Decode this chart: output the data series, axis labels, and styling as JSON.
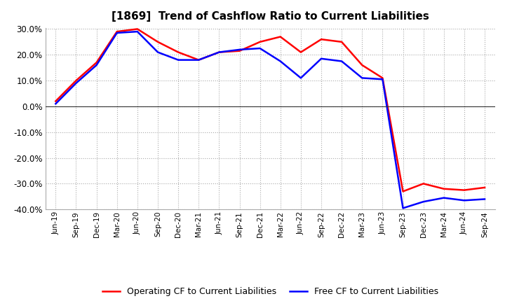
{
  "title": "[1869]  Trend of Cashflow Ratio to Current Liabilities",
  "x_labels": [
    "Jun-19",
    "Sep-19",
    "Dec-19",
    "Mar-20",
    "Jun-20",
    "Sep-20",
    "Dec-20",
    "Mar-21",
    "Jun-21",
    "Sep-21",
    "Dec-21",
    "Mar-22",
    "Jun-22",
    "Sep-22",
    "Dec-22",
    "Mar-23",
    "Jun-23",
    "Sep-23",
    "Dec-23",
    "Mar-24",
    "Jun-24",
    "Sep-24"
  ],
  "operating_cf": [
    2.0,
    10.0,
    17.0,
    29.0,
    30.0,
    25.0,
    21.0,
    18.0,
    21.0,
    21.5,
    25.0,
    27.0,
    21.0,
    26.0,
    25.0,
    16.0,
    11.0,
    -33.0,
    -30.0,
    -32.0,
    -32.5,
    -31.5
  ],
  "free_cf": [
    1.0,
    9.0,
    16.0,
    28.5,
    29.0,
    21.0,
    18.0,
    18.0,
    21.0,
    22.0,
    22.5,
    17.5,
    11.0,
    18.5,
    17.5,
    11.0,
    10.5,
    -39.5,
    -37.0,
    -35.5,
    -36.5,
    -36.0
  ],
  "operating_color": "#ff0000",
  "free_color": "#0000ff",
  "ylim": [
    -40,
    30
  ],
  "yticks": [
    -40,
    -30,
    -20,
    -10,
    0,
    10,
    20,
    30
  ],
  "background_color": "#ffffff",
  "plot_bg_color": "#ffffff",
  "grid_color": "#aaaaaa",
  "title_fontsize": 11
}
